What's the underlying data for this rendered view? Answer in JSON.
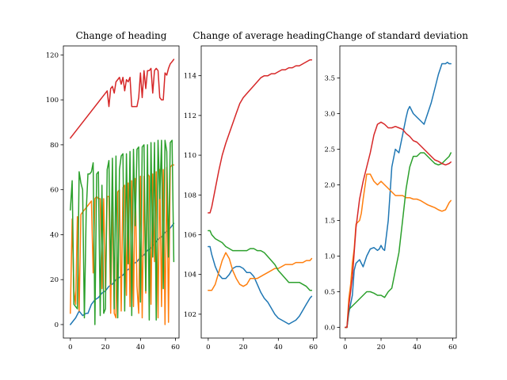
{
  "chart_data": [
    {
      "type": "line",
      "title": "Change of heading",
      "xlim": [
        -4,
        62
      ],
      "ylim": [
        -6,
        124
      ],
      "xticks": [
        0,
        20,
        40,
        60
      ],
      "yticks": [
        0,
        20,
        40,
        60,
        80,
        100,
        120
      ],
      "series": [
        {
          "color": "#1f77b4",
          "x": [
            0,
            3,
            5,
            7,
            9,
            10,
            12,
            14,
            16,
            18,
            20,
            22,
            24,
            26,
            28,
            30,
            32,
            34,
            36,
            38,
            40,
            42,
            44,
            46,
            48,
            50,
            52,
            54,
            56,
            58,
            59
          ],
          "y": [
            0,
            3,
            6,
            4,
            5,
            5,
            9,
            11,
            12,
            14,
            15,
            17,
            18,
            20,
            21,
            22,
            24,
            25,
            27,
            28,
            30,
            31,
            33,
            34,
            36,
            38,
            39,
            41,
            42,
            44,
            45
          ]
        },
        {
          "color": "#ff7f0e",
          "x": [
            0,
            1,
            2,
            3,
            4,
            5,
            6,
            7,
            8,
            9,
            10,
            11,
            12,
            13,
            14,
            15,
            16,
            17,
            18,
            19,
            20,
            21,
            22,
            23,
            24,
            25,
            26,
            27,
            28,
            29,
            30,
            31,
            32,
            33,
            34,
            35,
            36,
            37,
            38,
            39,
            40,
            41,
            42,
            43,
            44,
            45,
            46,
            47,
            48,
            49,
            50,
            51,
            52,
            53,
            54,
            55,
            56,
            57,
            58,
            59
          ],
          "y": [
            5,
            47,
            15,
            9,
            48,
            6,
            49,
            50,
            51,
            52,
            53,
            54,
            55,
            23,
            56,
            57,
            56,
            56,
            16,
            56,
            15,
            57,
            57,
            5,
            58,
            5,
            3,
            59,
            60,
            6,
            61,
            62,
            13,
            63,
            8,
            64,
            8,
            65,
            17,
            5,
            66,
            3,
            66,
            14,
            67,
            66,
            9,
            67,
            28,
            68,
            3,
            69,
            8,
            69,
            0,
            70,
            1,
            70,
            71,
            71
          ]
        },
        {
          "color": "#2ca02c",
          "x": [
            0,
            1,
            2,
            3,
            4,
            5,
            6,
            7,
            8,
            9,
            10,
            11,
            12,
            13,
            14,
            15,
            16,
            17,
            18,
            19,
            20,
            21,
            22,
            23,
            24,
            25,
            26,
            27,
            28,
            29,
            30,
            31,
            32,
            33,
            34,
            35,
            36,
            37,
            38,
            39,
            40,
            41,
            42,
            43,
            44,
            45,
            46,
            47,
            48,
            49,
            50,
            51,
            52,
            53,
            54,
            55,
            56,
            57,
            58,
            59
          ],
          "y": [
            51,
            64,
            9,
            8,
            7,
            68,
            63,
            60,
            3,
            50,
            67,
            67,
            68,
            72,
            0,
            67,
            68,
            4,
            62,
            5,
            7,
            69,
            73,
            18,
            74,
            7,
            75,
            3,
            69,
            75,
            76,
            6,
            76,
            27,
            77,
            4,
            78,
            44,
            78,
            79,
            10,
            79,
            80,
            15,
            80,
            2,
            81,
            30,
            81,
            2,
            82,
            56,
            82,
            16,
            82,
            77,
            30,
            81,
            82,
            28
          ]
        },
        {
          "color": "#d62728",
          "x": [
            0,
            21,
            22,
            23,
            24,
            25,
            26,
            27,
            28,
            29,
            30,
            31,
            32,
            33,
            34,
            35,
            36,
            37,
            38,
            39,
            40,
            41,
            42,
            43,
            44,
            45,
            46,
            47,
            48,
            49,
            50,
            51,
            52,
            53,
            54,
            55,
            56,
            57,
            58,
            59
          ],
          "y": [
            83,
            104,
            97,
            105,
            106,
            103,
            108,
            109,
            110,
            107,
            110,
            104,
            109,
            108,
            110,
            97,
            97,
            97,
            97,
            101,
            112,
            101,
            113,
            105,
            113,
            113,
            114,
            103,
            113,
            114,
            113,
            101,
            100,
            100,
            112,
            111,
            114,
            116,
            117,
            118
          ]
        }
      ]
    },
    {
      "type": "line",
      "title": "Change of average heading",
      "xlim": [
        -4,
        62
      ],
      "ylim": [
        100.8,
        115.5
      ],
      "xticks": [
        0,
        20,
        40,
        60
      ],
      "yticks": [
        102,
        104,
        106,
        108,
        110,
        112,
        114
      ],
      "series": [
        {
          "color": "#1f77b4",
          "x": [
            0,
            1,
            2,
            4,
            6,
            8,
            10,
            12,
            14,
            16,
            18,
            20,
            22,
            24,
            26,
            28,
            30,
            32,
            34,
            36,
            38,
            40,
            42,
            44,
            46,
            48,
            50,
            52,
            54,
            56,
            58,
            59
          ],
          "y": [
            105.4,
            105.4,
            105.0,
            104.4,
            104.0,
            103.8,
            103.8,
            104.0,
            104.3,
            104.4,
            104.4,
            104.3,
            104.1,
            104.1,
            103.9,
            103.5,
            103.1,
            102.8,
            102.6,
            102.3,
            102.0,
            101.8,
            101.7,
            101.6,
            101.5,
            101.6,
            101.7,
            101.9,
            102.2,
            102.5,
            102.8,
            102.9
          ]
        },
        {
          "color": "#ff7f0e",
          "x": [
            0,
            1,
            2,
            4,
            6,
            8,
            10,
            12,
            14,
            16,
            18,
            20,
            22,
            24,
            26,
            28,
            30,
            32,
            34,
            36,
            38,
            40,
            42,
            44,
            46,
            48,
            50,
            52,
            54,
            56,
            58,
            59
          ],
          "y": [
            103.2,
            103.2,
            103.2,
            103.5,
            104.1,
            104.7,
            105.1,
            104.8,
            104.2,
            103.8,
            103.5,
            103.4,
            103.5,
            103.8,
            103.8,
            103.8,
            103.9,
            104.0,
            104.1,
            104.2,
            104.3,
            104.3,
            104.4,
            104.5,
            104.5,
            104.5,
            104.6,
            104.6,
            104.6,
            104.7,
            104.7,
            104.8
          ]
        },
        {
          "color": "#2ca02c",
          "x": [
            0,
            1,
            2,
            4,
            6,
            8,
            10,
            12,
            14,
            16,
            18,
            20,
            22,
            24,
            26,
            28,
            30,
            32,
            34,
            36,
            38,
            40,
            42,
            44,
            46,
            48,
            50,
            52,
            54,
            56,
            58,
            59
          ],
          "y": [
            106.2,
            106.2,
            106.0,
            105.8,
            105.7,
            105.6,
            105.4,
            105.3,
            105.2,
            105.2,
            105.2,
            105.2,
            105.2,
            105.3,
            105.3,
            105.2,
            105.2,
            105.1,
            104.9,
            104.7,
            104.5,
            104.2,
            104.0,
            103.8,
            103.6,
            103.6,
            103.6,
            103.6,
            103.5,
            103.4,
            103.2,
            103.2
          ]
        },
        {
          "color": "#d62728",
          "x": [
            0,
            1,
            2,
            4,
            6,
            8,
            10,
            12,
            14,
            16,
            18,
            20,
            22,
            24,
            26,
            28,
            30,
            32,
            34,
            36,
            38,
            40,
            42,
            44,
            46,
            48,
            50,
            52,
            54,
            56,
            58,
            59
          ],
          "y": [
            107.1,
            107.1,
            107.4,
            108.3,
            109.2,
            110.0,
            110.6,
            111.1,
            111.6,
            112.1,
            112.6,
            112.9,
            113.1,
            113.3,
            113.5,
            113.7,
            113.9,
            114.0,
            114.0,
            114.1,
            114.1,
            114.2,
            114.3,
            114.3,
            114.4,
            114.4,
            114.5,
            114.5,
            114.6,
            114.7,
            114.8,
            114.8
          ]
        }
      ]
    },
    {
      "type": "line",
      "title": "Change of standard deviation",
      "xlim": [
        -3,
        62
      ],
      "ylim": [
        -0.15,
        3.95
      ],
      "xticks": [
        0,
        20,
        40,
        60
      ],
      "yticks": [
        0.0,
        0.5,
        1.0,
        1.5,
        2.0,
        2.5,
        3.0,
        3.5
      ],
      "series": [
        {
          "color": "#1f77b4",
          "x": [
            0,
            1,
            2,
            4,
            5,
            6,
            8,
            9,
            10,
            12,
            14,
            16,
            18,
            19,
            20,
            21,
            22,
            24,
            26,
            28,
            30,
            32,
            34,
            35,
            36,
            38,
            40,
            42,
            44,
            46,
            48,
            50,
            52,
            54,
            56,
            57,
            58,
            59
          ],
          "y": [
            0,
            0,
            0.2,
            0.45,
            0.8,
            0.9,
            0.95,
            0.9,
            0.85,
            1.0,
            1.1,
            1.12,
            1.08,
            1.1,
            1.15,
            1.1,
            1.08,
            1.5,
            2.25,
            2.5,
            2.45,
            2.7,
            2.95,
            3.05,
            3.1,
            3.0,
            2.95,
            2.9,
            2.85,
            3.0,
            3.15,
            3.35,
            3.55,
            3.7,
            3.7,
            3.72,
            3.7,
            3.7
          ]
        },
        {
          "color": "#ff7f0e",
          "x": [
            0,
            1,
            2,
            3,
            4,
            5,
            6,
            8,
            9,
            10,
            12,
            14,
            16,
            18,
            20,
            22,
            24,
            26,
            28,
            30,
            32,
            34,
            36,
            38,
            40,
            42,
            44,
            46,
            48,
            50,
            52,
            54,
            56,
            57,
            58,
            59
          ],
          "y": [
            0,
            0,
            0.4,
            0.6,
            0.9,
            1.1,
            1.45,
            1.5,
            1.6,
            1.8,
            2.15,
            2.15,
            2.05,
            2.0,
            2.05,
            2.0,
            1.95,
            1.9,
            1.85,
            1.85,
            1.85,
            1.82,
            1.82,
            1.8,
            1.8,
            1.78,
            1.75,
            1.72,
            1.7,
            1.68,
            1.65,
            1.63,
            1.65,
            1.7,
            1.75,
            1.78
          ]
        },
        {
          "color": "#2ca02c",
          "x": [
            0,
            1,
            2,
            4,
            6,
            8,
            10,
            12,
            14,
            16,
            18,
            20,
            22,
            24,
            26,
            28,
            30,
            32,
            34,
            36,
            38,
            40,
            42,
            44,
            46,
            48,
            50,
            52,
            54,
            56,
            58,
            59
          ],
          "y": [
            0,
            0,
            0.25,
            0.3,
            0.35,
            0.4,
            0.45,
            0.5,
            0.5,
            0.48,
            0.45,
            0.45,
            0.42,
            0.5,
            0.55,
            0.8,
            1.05,
            1.5,
            1.95,
            2.25,
            2.4,
            2.4,
            2.45,
            2.45,
            2.4,
            2.35,
            2.3,
            2.28,
            2.3,
            2.35,
            2.4,
            2.45
          ]
        },
        {
          "color": "#d62728",
          "x": [
            0,
            1,
            2,
            4,
            6,
            8,
            10,
            12,
            14,
            16,
            18,
            20,
            22,
            24,
            26,
            28,
            30,
            32,
            34,
            36,
            38,
            40,
            42,
            44,
            46,
            48,
            50,
            52,
            54,
            56,
            58,
            59
          ],
          "y": [
            0,
            0,
            0.3,
            0.7,
            1.4,
            1.8,
            2.05,
            2.25,
            2.45,
            2.7,
            2.85,
            2.88,
            2.85,
            2.8,
            2.8,
            2.82,
            2.8,
            2.78,
            2.72,
            2.68,
            2.62,
            2.6,
            2.55,
            2.5,
            2.45,
            2.4,
            2.35,
            2.33,
            2.3,
            2.28,
            2.3,
            2.32
          ]
        }
      ]
    }
  ]
}
